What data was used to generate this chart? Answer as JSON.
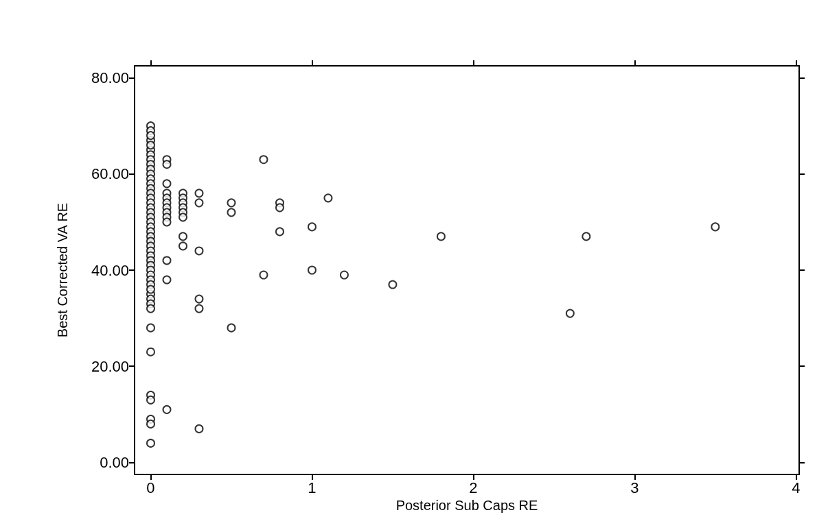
{
  "chart_data": {
    "type": "scatter",
    "xlabel": "Posterior Sub Caps RE",
    "ylabel": "Best Corrected VA RE",
    "marker": "circle",
    "grid": false,
    "xlim": [
      -0.1,
      4.02
    ],
    "xticks": [
      0,
      1,
      2,
      3,
      4
    ],
    "ylim": [
      -2.5,
      82.5
    ],
    "yticks": [
      {
        "value": 0,
        "label": "0.00"
      },
      {
        "value": 20,
        "label": "20.00"
      },
      {
        "value": 40,
        "label": "40.00"
      },
      {
        "value": 60,
        "label": "60.00"
      },
      {
        "value": 80,
        "label": "80.00"
      }
    ],
    "series": [
      {
        "color": "#000000",
        "x": [
          0,
          0,
          0,
          0,
          0,
          0,
          0,
          0,
          0,
          0,
          0,
          0,
          0,
          0,
          0,
          0,
          0,
          0,
          0,
          0,
          0,
          0,
          0,
          0,
          0,
          0,
          0,
          0,
          0,
          0,
          0,
          0,
          0,
          0,
          0,
          0,
          0,
          0,
          0,
          0,
          0,
          0,
          0,
          0,
          0,
          0
        ],
        "values": [
          70,
          69,
          67,
          65,
          64,
          63,
          62,
          61,
          60,
          59,
          58,
          57,
          56,
          55,
          54,
          53,
          52,
          51,
          50,
          49,
          48,
          47,
          46,
          45,
          44,
          43,
          42,
          41,
          40,
          39,
          38,
          37,
          35,
          34,
          33,
          32,
          28,
          23,
          14,
          13,
          9,
          8,
          4,
          66,
          36,
          68
        ]
      },
      {
        "color": "#000000",
        "x": [
          0.1,
          0.1,
          0.1,
          0.1,
          0.1,
          0.1,
          0.1,
          0.1,
          0.1,
          0.1,
          0.1,
          0.1,
          0.1
        ],
        "values": [
          63,
          62,
          58,
          56,
          55,
          54,
          53,
          52,
          51,
          50,
          42,
          38,
          11
        ]
      },
      {
        "color": "#000000",
        "x": [
          0.2,
          0.2,
          0.2,
          0.2,
          0.2,
          0.2,
          0.2,
          0.2,
          0.3,
          0.3,
          0.3,
          0.3,
          0.3,
          0.3
        ],
        "values": [
          56,
          55,
          54,
          53,
          52,
          51,
          47,
          45,
          56,
          54,
          44,
          34,
          32,
          7
        ]
      },
      {
        "color": "#000000",
        "x": [
          0.5,
          0.5,
          0.5,
          0.7,
          0.7,
          0.8,
          0.8,
          0.8,
          1.0,
          1.0,
          1.1,
          1.2,
          1.5,
          1.8,
          2.6,
          2.7,
          3.5
        ],
        "values": [
          54,
          52,
          28,
          63,
          39,
          54,
          53,
          48,
          49,
          40,
          55,
          39,
          37,
          47,
          31,
          47,
          49
        ]
      }
    ]
  }
}
